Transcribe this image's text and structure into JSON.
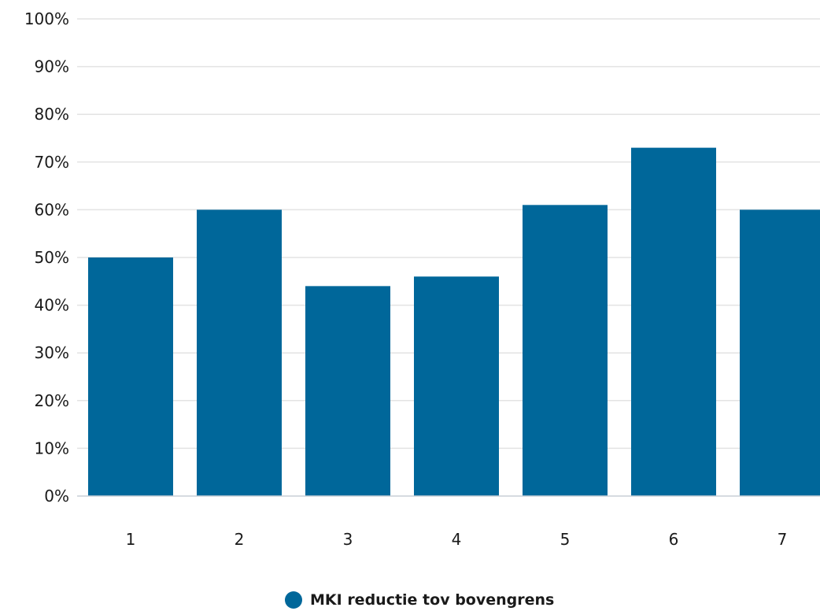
{
  "chart_data": {
    "type": "bar",
    "categories": [
      "1",
      "2",
      "3",
      "4",
      "5",
      "6",
      "7"
    ],
    "series": [
      {
        "name": "MKI reductie tov bovengrens",
        "values": [
          50,
          60,
          44,
          46,
          61,
          73,
          60
        ],
        "color": "#00679a"
      }
    ],
    "y_tick_labels": [
      "0%",
      "10%",
      "20%",
      "30%",
      "40%",
      "50%",
      "60%",
      "70%",
      "80%",
      "90%",
      "100%"
    ],
    "ylim": [
      0,
      100
    ],
    "grid": true,
    "legend_position": "bottom-center"
  }
}
